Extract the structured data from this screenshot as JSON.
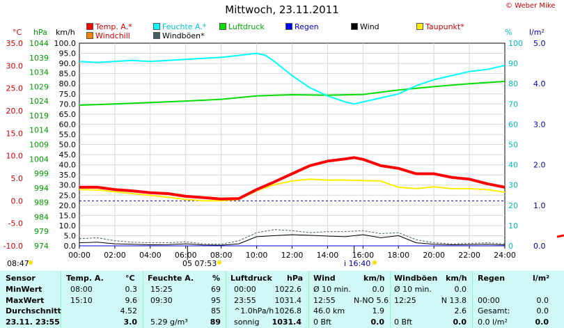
{
  "title": "Mittwoch, 23.11.2011",
  "copyright": "© Weber Mike",
  "units": {
    "temp": "°C",
    "pressure": "hPa",
    "wind": "km/h",
    "humidity": "%",
    "rain": "l/m²"
  },
  "legend": [
    {
      "label": "Temp. A.*",
      "color": "#ff0000"
    },
    {
      "label": "Feuchte A.*",
      "color": "#00ffff"
    },
    {
      "label": "Luftdruck",
      "color": "#00dd00"
    },
    {
      "label": "Regen",
      "color": "#0000ff"
    },
    {
      "label": "Wind",
      "color": "#000000"
    },
    {
      "label": "Taupunkt*",
      "color": "#ffee00"
    },
    {
      "label": "Windchill",
      "color": "#ff8000"
    },
    {
      "label": "Windböen*",
      "color": "#406060"
    }
  ],
  "markers": {
    "sunrise": "08:47",
    "moon_set": "05 07:53",
    "event": "16:40",
    "event_label": "i"
  },
  "chart_data": {
    "type": "line",
    "title": "Mittwoch, 23.11.2011",
    "x_labels": [
      "00:00",
      "02:00",
      "04:00",
      "06:00",
      "08:00",
      "10:00",
      "12:00",
      "14:00",
      "16:00",
      "18:00",
      "20:00",
      "22:00",
      "24:00"
    ],
    "xlim": [
      0,
      24
    ],
    "axes": {
      "temp": {
        "unit": "°C",
        "range": [
          -10,
          35
        ],
        "ticks": [
          "35.0",
          "30.0",
          "25.0",
          "20.0",
          "15.0",
          "10.0",
          "5.0",
          "0.0",
          "-5.0",
          "-10.0"
        ]
      },
      "pressure": {
        "unit": "hPa",
        "range": [
          974,
          1044
        ],
        "ticks": [
          "1044",
          "1039",
          "1034",
          "1029",
          "1024",
          "1019",
          "1014",
          "1009",
          "1004",
          "999",
          "994",
          "989",
          "984",
          "979",
          "974"
        ]
      },
      "wind": {
        "unit": "km/h",
        "range": [
          0,
          100
        ],
        "ticks": [
          "100.0",
          "95.0",
          "90.0",
          "85.0",
          "80.0",
          "75.0",
          "70.0",
          "65.0",
          "60.0",
          "55.0",
          "50.0",
          "45.0",
          "40.0",
          "35.0",
          "30.0",
          "25.0",
          "20.0",
          "15.0",
          "10.0",
          "5.0",
          "0.0"
        ]
      },
      "humidity": {
        "unit": "%",
        "range": [
          0,
          100
        ],
        "ticks": [
          "100",
          "90",
          "80",
          "70",
          "60",
          "50",
          "40",
          "30",
          "20",
          "10",
          "0"
        ]
      },
      "rain": {
        "unit": "l/m²",
        "range": [
          0,
          5
        ],
        "ticks": [
          "5.0",
          "4.0",
          "3.0",
          "2.0",
          "1.0",
          "0.0"
        ]
      }
    },
    "series": [
      {
        "name": "Temp. A.*",
        "axis": "temp",
        "color": "#ff0000",
        "width": 4,
        "x": [
          0,
          1,
          2,
          3,
          4,
          5,
          6,
          7,
          8,
          9,
          10,
          11,
          12,
          13,
          14,
          15,
          15.5,
          16,
          17,
          18,
          19,
          20,
          21,
          22,
          23,
          24
        ],
        "y": [
          3.0,
          3.0,
          2.5,
          2.2,
          1.8,
          1.6,
          1.0,
          0.7,
          0.4,
          0.5,
          2.5,
          4.2,
          6.0,
          7.8,
          8.8,
          9.3,
          9.6,
          9.2,
          7.8,
          7.2,
          6.0,
          6.0,
          5.2,
          4.8,
          3.8,
          3.0
        ]
      },
      {
        "name": "Taupunkt*",
        "axis": "temp",
        "color": "#ffee00",
        "width": 2,
        "x": [
          0,
          1,
          2,
          3,
          4,
          5,
          6,
          7,
          8,
          9,
          10,
          11,
          12,
          13,
          14,
          15,
          16,
          17,
          18,
          19,
          20,
          21,
          22,
          23,
          24
        ],
        "y": [
          2.5,
          2.4,
          2.0,
          1.6,
          1.2,
          0.8,
          0.3,
          0.0,
          0.0,
          0.3,
          2.2,
          3.6,
          4.4,
          4.8,
          4.6,
          4.6,
          4.5,
          4.4,
          3.0,
          2.7,
          3.1,
          2.7,
          2.7,
          2.5,
          1.9
        ]
      },
      {
        "name": "Feuchte A.*",
        "axis": "humidity",
        "color": "#00ffff",
        "width": 2,
        "x": [
          0,
          1,
          2,
          3,
          4,
          5,
          6,
          7,
          8,
          9,
          10,
          10.5,
          11,
          12,
          13,
          14,
          15,
          15.5,
          16,
          17,
          18,
          19,
          20,
          21,
          22,
          23,
          24
        ],
        "y": [
          91,
          90.5,
          91,
          91.5,
          91,
          91.5,
          92,
          92.5,
          93,
          94,
          95,
          94,
          91,
          84,
          78,
          74,
          71,
          70,
          71,
          73,
          75,
          79,
          82,
          84,
          86,
          87,
          89
        ]
      },
      {
        "name": "Luftdruck",
        "axis": "pressure",
        "color": "#00dd00",
        "width": 2,
        "x": [
          0,
          2,
          4,
          6,
          8,
          10,
          12,
          14,
          16,
          18,
          20,
          22,
          24
        ],
        "y": [
          1022.6,
          1023.0,
          1023.5,
          1024.0,
          1024.6,
          1025.8,
          1026.2,
          1026.0,
          1026.3,
          1027.8,
          1029.0,
          1030.0,
          1030.8
        ]
      },
      {
        "name": "Wind",
        "axis": "wind",
        "color": "#000000",
        "width": 1,
        "x": [
          0,
          1,
          2,
          3,
          4,
          5,
          6,
          7,
          8,
          9,
          10,
          11,
          12,
          13,
          14,
          15,
          16,
          17,
          18,
          19,
          20,
          21,
          22,
          23,
          24
        ],
        "y": [
          1.5,
          1.8,
          1.0,
          0.8,
          0.5,
          0.6,
          1.0,
          0.4,
          0.3,
          1.0,
          4.5,
          5.0,
          5.5,
          5.2,
          4.8,
          4.5,
          5.5,
          4.0,
          5.0,
          1.5,
          0.8,
          0.5,
          0.6,
          0.8,
          0.4
        ]
      },
      {
        "name": "Windböen*",
        "axis": "wind",
        "color": "#406060",
        "width": 1,
        "dash": "3,2",
        "x": [
          0,
          1,
          2,
          3,
          4,
          5,
          6,
          7,
          8,
          9,
          10,
          11,
          12,
          13,
          14,
          15,
          16,
          17,
          18,
          19,
          20,
          21,
          22,
          23,
          24
        ],
        "y": [
          3.5,
          4.0,
          2.5,
          1.8,
          1.5,
          1.5,
          2.0,
          1.0,
          0.8,
          2.5,
          6.5,
          8.0,
          7.5,
          6.5,
          7.0,
          7.0,
          7.5,
          6.0,
          6.5,
          3.0,
          1.5,
          1.0,
          1.2,
          1.5,
          1.0
        ]
      },
      {
        "name": "Regen",
        "axis": "rain",
        "color": "#0000ff",
        "width": 1,
        "x": [
          0,
          24
        ],
        "y": [
          0.0,
          0.0
        ]
      }
    ],
    "reference_line": {
      "axis": "temp",
      "value": 0.0,
      "color": "#0000aa",
      "style": "dashed"
    }
  },
  "table": {
    "headers": {
      "sensor": "Sensor",
      "temp": "Temp. A.",
      "temp_unit": "°C",
      "hum": "Feuchte A.",
      "hum_unit": "%",
      "press": "Luftdruck",
      "press_unit": "hPa",
      "wind": "Wind",
      "wind_unit": "km/h",
      "gust": "Windböen",
      "gust_unit": "km/h",
      "rain": "Regen",
      "rain_unit": "l/m²"
    },
    "rows": [
      {
        "label": "MinWert",
        "temp_t": "08:00",
        "temp_v": "0.3",
        "hum_t": "15:25",
        "hum_v": "69",
        "press_t": "00:00",
        "press_v": "1022.6",
        "wind_t": "Ø 10 min.",
        "wind_v": "0.0",
        "gust_t": "Ø 10 min.",
        "gust_v": "0.0",
        "rain_t": "",
        "rain_v": ""
      },
      {
        "label": "MaxWert",
        "temp_t": "15:10",
        "temp_v": "9.6",
        "hum_t": "09:30",
        "hum_v": "95",
        "press_t": "23:55",
        "press_v": "1031.4",
        "wind_t": "12:55",
        "wind_dir": "N-NO 5.6",
        "wind_v": "",
        "gust_t": "12:25",
        "gust_v": "N 13.8",
        "rain_t": "00:00",
        "rain_v": "0.0"
      },
      {
        "label": "Durchschnitt",
        "temp_t": "",
        "temp_v": "4.52",
        "hum_t": "",
        "hum_v": "85",
        "press_t": "^1.0hPa/h",
        "press_v": "1026.8",
        "wind_t": "46.0 km",
        "wind_v": "1.9",
        "gust_t": "",
        "gust_v": "2.6",
        "rain_t": "Gesamt:",
        "rain_v": "0.0"
      },
      {
        "label": "23.11. 23:55",
        "temp_t": "",
        "temp_v": "3.0",
        "hum_t": "5.29 g/m³",
        "hum_v": "89",
        "press_t": "sonnig",
        "press_v": "1031.4",
        "wind_t": "0 Bft",
        "wind_v": "0.0",
        "gust_t": "0 Bft",
        "gust_v": "0.0",
        "rain_t": "0.0 l/m²",
        "rain_v": "0.0"
      }
    ]
  }
}
